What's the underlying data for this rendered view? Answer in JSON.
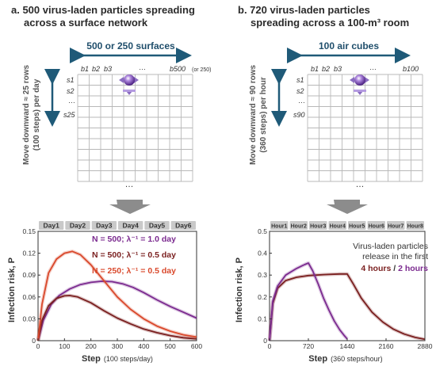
{
  "panel_a": {
    "title_line1": "a. 500 virus-laden particles spreading",
    "title_line2": "across a surface network",
    "columns_label": "500 or 250 surfaces",
    "rows_label_line1": "Move downward ≈ 25 rows",
    "rows_label_line2": "(100 steps) per day",
    "col_labels": [
      "b1",
      "b2",
      "b3",
      "…",
      "b500"
    ],
    "col_last_suffix": "(or 250)",
    "row_labels": [
      "s1",
      "s2",
      "…",
      "s25"
    ],
    "ellipsis": "…"
  },
  "panel_b": {
    "title_line1": "b. 720 virus-laden particles",
    "title_line2": "spreading across a 100-m³ room",
    "columns_label": "100 air cubes",
    "rows_label_line1": "Move downward ≈ 90 rows",
    "rows_label_line2": "(360 steps) per hour",
    "col_labels": [
      "b1",
      "b2",
      "b3",
      "…",
      "b100"
    ],
    "row_labels": [
      "s1",
      "s2",
      "…",
      "s90"
    ],
    "ellipsis": "…"
  },
  "colors": {
    "blue": "#1f5a78",
    "purple": "#7b2a8f",
    "dark_red": "#7a1f1f",
    "red": "#d9482b",
    "particle": "#8a58c8"
  },
  "chart_data": [
    {
      "type": "line",
      "ylabel": "Infection risk, P",
      "xlabel_bold": "Step",
      "xlabel_normal": "(100 steps/day)",
      "xlim": [
        0,
        600
      ],
      "ylim": [
        0,
        0.15
      ],
      "xticks": [
        "0",
        "100",
        "200",
        "300",
        "400",
        "500",
        "600"
      ],
      "yticks": [
        "0",
        "0.03",
        "0.06",
        "0.09",
        "0.12",
        "0.15"
      ],
      "period_labels": [
        "Day1",
        "Day2",
        "Day3",
        "Day4",
        "Day5",
        "Day6"
      ],
      "series": [
        {
          "name": "N = 500;  λ⁻¹ = 1.0 day",
          "color": "#7b2a8f",
          "points": [
            [
              0,
              0
            ],
            [
              20,
              0.028
            ],
            [
              50,
              0.05
            ],
            [
              80,
              0.062
            ],
            [
              120,
              0.071
            ],
            [
              160,
              0.077
            ],
            [
              200,
              0.08
            ],
            [
              240,
              0.0815
            ],
            [
              280,
              0.081
            ],
            [
              320,
              0.078
            ],
            [
              360,
              0.073
            ],
            [
              400,
              0.066
            ],
            [
              450,
              0.056
            ],
            [
              500,
              0.047
            ],
            [
              550,
              0.039
            ],
            [
              600,
              0.031
            ]
          ]
        },
        {
          "name": "N = 500;  λ⁻¹ = 0.5 day",
          "color": "#7a1f1f",
          "points": [
            [
              0,
              0
            ],
            [
              15,
              0.028
            ],
            [
              40,
              0.048
            ],
            [
              70,
              0.058
            ],
            [
              100,
              0.0615
            ],
            [
              120,
              0.062
            ],
            [
              150,
              0.06
            ],
            [
              200,
              0.052
            ],
            [
              250,
              0.041
            ],
            [
              300,
              0.031
            ],
            [
              350,
              0.023
            ],
            [
              400,
              0.016
            ],
            [
              450,
              0.011
            ],
            [
              500,
              0.007
            ],
            [
              550,
              0.004
            ],
            [
              600,
              0.0025
            ]
          ]
        },
        {
          "name": "N = 250;  λ⁻¹ = 0.5 day",
          "color": "#d9482b",
          "points": [
            [
              0,
              0
            ],
            [
              15,
              0.05
            ],
            [
              40,
              0.093
            ],
            [
              70,
              0.112
            ],
            [
              100,
              0.12
            ],
            [
              130,
              0.1225
            ],
            [
              160,
              0.118
            ],
            [
              200,
              0.104
            ],
            [
              250,
              0.082
            ],
            [
              300,
              0.06
            ],
            [
              350,
              0.043
            ],
            [
              400,
              0.03
            ],
            [
              450,
              0.02
            ],
            [
              500,
              0.013
            ],
            [
              550,
              0.008
            ],
            [
              600,
              0.005
            ]
          ]
        }
      ]
    },
    {
      "type": "line",
      "ylabel": "Infection risk, P",
      "xlabel_bold": "Step",
      "xlabel_normal": "(360 steps/hour)",
      "xlim": [
        0,
        2880
      ],
      "ylim": [
        0,
        0.5
      ],
      "xticks": [
        "0",
        "720",
        "1440",
        "2160",
        "2880"
      ],
      "yticks": [
        "0",
        "0.1",
        "0.2",
        "0.3",
        "0.4",
        "0.5"
      ],
      "period_labels": [
        "Hour1",
        "Hour2",
        "Hour3",
        "Hour4",
        "Hour5",
        "Hour6",
        "Hour7",
        "Hour8"
      ],
      "annotation_line1": "Virus-laden particles",
      "annotation_line2": "release in the first",
      "annotation_hours_a": "4 hours",
      "annotation_sep": " / ",
      "annotation_hours_b": "2 hours",
      "series": [
        {
          "name": "4 hours",
          "color": "#7a1f1f",
          "points": [
            [
              0,
              0
            ],
            [
              60,
              0.17
            ],
            [
              150,
              0.24
            ],
            [
              300,
              0.275
            ],
            [
              500,
              0.29
            ],
            [
              720,
              0.298
            ],
            [
              1000,
              0.302
            ],
            [
              1300,
              0.305
            ],
            [
              1440,
              0.305
            ],
            [
              1550,
              0.26
            ],
            [
              1700,
              0.195
            ],
            [
              1900,
              0.13
            ],
            [
              2100,
              0.085
            ],
            [
              2300,
              0.052
            ],
            [
              2500,
              0.03
            ],
            [
              2700,
              0.015
            ],
            [
              2880,
              0.006
            ]
          ]
        },
        {
          "name": "2 hours",
          "color": "#7b2a8f",
          "points": [
            [
              0,
              0
            ],
            [
              60,
              0.18
            ],
            [
              150,
              0.25
            ],
            [
              300,
              0.3
            ],
            [
              500,
              0.33
            ],
            [
              650,
              0.348
            ],
            [
              720,
              0.355
            ],
            [
              800,
              0.32
            ],
            [
              900,
              0.26
            ],
            [
              1000,
              0.195
            ],
            [
              1100,
              0.14
            ],
            [
              1200,
              0.09
            ],
            [
              1300,
              0.05
            ],
            [
              1380,
              0.025
            ],
            [
              1440,
              0.008
            ]
          ]
        }
      ]
    }
  ]
}
